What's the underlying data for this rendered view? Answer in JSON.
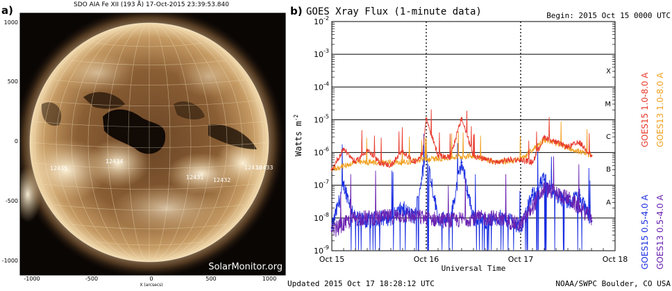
{
  "panel_a": {
    "label": "a)",
    "title": "SDO AIA Fe XII (193 Å) 17-Oct-2015 23:39:53.840",
    "watermark": "SolarMonitor.org",
    "xlabel": "X (arcsecs)",
    "y_ticks": [
      "1000",
      "500",
      "0",
      "-500",
      "-1000"
    ],
    "x_ticks": [
      "-1000",
      "-500",
      "0",
      "500",
      "1000"
    ],
    "regions": [
      "12435",
      "12434",
      "12431",
      "12432",
      "12436",
      "12433"
    ]
  },
  "panel_b": {
    "label": "b)",
    "title": "GOES Xray Flux (1-minute data)",
    "begin": "Begin:  2015 Oct 15 0000 UTC",
    "updated": "Updated 2015 Oct 17 18:28:12 UTC",
    "credit": "NOAA/SWPC Boulder, CO USA",
    "xlabel": "Universal Time",
    "ylabel_main": "Watts m",
    "ylabel_exp": "-2",
    "legend_long_15": "GOES15 1.0-8.0 A",
    "legend_long_13": "GOES13 1.0-8.0 A",
    "legend_short_15": "GOES15 0.5-4.0 A",
    "legend_short_13": "GOES13 0.5-4.0 A"
  },
  "colors": {
    "goes15_long": "#e8392c",
    "goes13_long": "#f0a020",
    "goes15_short": "#1a2ee0",
    "goes13_short": "#6a22b0"
  },
  "chart_data": {
    "type": "line",
    "title": "GOES Xray Flux (1-minute data)",
    "xlabel": "Universal Time",
    "ylabel": "Watts m-2",
    "yscale": "log",
    "ylim": [
      1e-09,
      0.01
    ],
    "xlim": [
      "2015-10-15 00:00",
      "2015-10-18 00:00"
    ],
    "x_ticks": [
      "Oct 15",
      "Oct 16",
      "Oct 17",
      "Oct 18"
    ],
    "y_ticks": [
      "10^-9",
      "10^-8",
      "10^-7",
      "10^-6",
      "10^-5",
      "10^-4",
      "10^-3",
      "10^-2"
    ],
    "flare_classes": [
      "A",
      "B",
      "C",
      "M",
      "X"
    ],
    "grid": true,
    "series": [
      {
        "name": "GOES15 1.0-8.0 A",
        "x": [
          "2015-10-15 00:00",
          "2015-10-15 03:00",
          "2015-10-15 06:00",
          "2015-10-15 09:00",
          "2015-10-15 12:00",
          "2015-10-15 15:00",
          "2015-10-15 18:00",
          "2015-10-15 21:00",
          "2015-10-15 23:00",
          "2015-10-16 00:00",
          "2015-10-16 03:00",
          "2015-10-16 06:00",
          "2015-10-16 09:00",
          "2015-10-16 12:00",
          "2015-10-16 15:00",
          "2015-10-16 18:00",
          "2015-10-16 21:00",
          "2015-10-17 00:00",
          "2015-10-17 03:00",
          "2015-10-17 06:00",
          "2015-10-17 09:00",
          "2015-10-17 12:00",
          "2015-10-17 15:00",
          "2015-10-17 18:00"
        ],
        "y": [
          3e-07,
          1.3e-06,
          5e-07,
          1.2e-06,
          5e-07,
          4e-07,
          1.1e-06,
          5e-07,
          9e-07,
          1.1e-05,
          8e-07,
          7e-07,
          1.1e-05,
          8e-07,
          6e-07,
          5e-07,
          6e-07,
          6e-07,
          5e-07,
          3e-06,
          2e-06,
          1.5e-06,
          2e-06,
          8e-07
        ]
      },
      {
        "name": "GOES13 1.0-8.0 A",
        "x": [
          "2015-10-15 00:00",
          "2015-10-15 06:00",
          "2015-10-15 12:00",
          "2015-10-15 18:00",
          "2015-10-16 00:00",
          "2015-10-16 06:00",
          "2015-10-16 12:00",
          "2015-10-16 18:00",
          "2015-10-17 00:00",
          "2015-10-17 06:00",
          "2015-10-17 12:00",
          "2015-10-17 18:00"
        ],
        "y": [
          3e-07,
          5e-07,
          5e-07,
          5e-07,
          6e-07,
          7e-07,
          8e-07,
          5e-07,
          6e-07,
          2.5e-06,
          1.4e-06,
          8e-07
        ]
      },
      {
        "name": "GOES15 0.5-4.0 A",
        "x": [
          "2015-10-15 00:00",
          "2015-10-15 03:00",
          "2015-10-15 06:00",
          "2015-10-15 09:00",
          "2015-10-15 12:00",
          "2015-10-15 15:00",
          "2015-10-15 18:00",
          "2015-10-15 21:00",
          "2015-10-16 00:00",
          "2015-10-16 03:00",
          "2015-10-16 06:00",
          "2015-10-16 09:00",
          "2015-10-16 12:00",
          "2015-10-16 15:00",
          "2015-10-16 18:00",
          "2015-10-16 21:00",
          "2015-10-17 00:00",
          "2015-10-17 03:00",
          "2015-10-17 06:00",
          "2015-10-17 09:00",
          "2015-10-17 12:00",
          "2015-10-17 15:00",
          "2015-10-17 18:00"
        ],
        "y": [
          5e-09,
          1e-07,
          1e-08,
          8e-09,
          1e-08,
          1e-08,
          2e-08,
          1e-08,
          1e-06,
          1e-08,
          8e-09,
          5e-07,
          1e-08,
          8e-09,
          1e-08,
          1e-08,
          5e-09,
          5e-08,
          1.5e-07,
          5e-08,
          3e-08,
          5e-08,
          8e-09
        ]
      },
      {
        "name": "GOES13 0.5-4.0 A",
        "x": [
          "2015-10-15 00:00",
          "2015-10-15 06:00",
          "2015-10-15 12:00",
          "2015-10-15 18:00",
          "2015-10-16 00:00",
          "2015-10-16 06:00",
          "2015-10-16 12:00",
          "2015-10-16 18:00",
          "2015-10-17 00:00",
          "2015-10-17 06:00",
          "2015-10-17 12:00",
          "2015-10-17 18:00"
        ],
        "y": [
          4e-09,
          1e-08,
          1e-08,
          1.2e-08,
          1e-08,
          8e-09,
          1e-08,
          1e-08,
          6e-09,
          8e-08,
          4e-08,
          1e-08
        ]
      }
    ]
  }
}
